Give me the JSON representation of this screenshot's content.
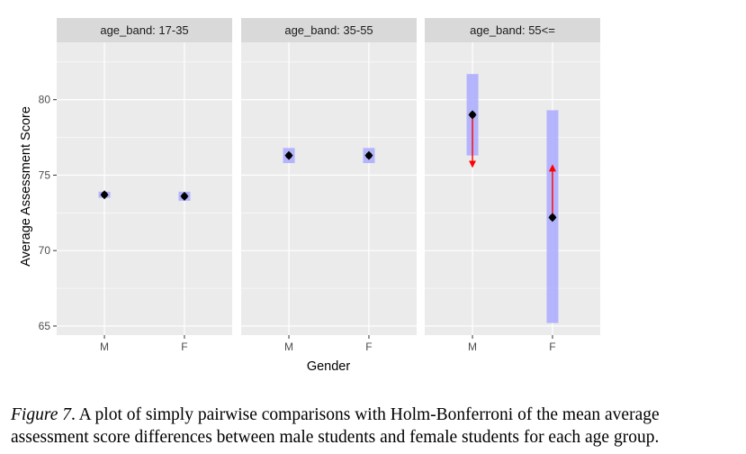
{
  "chart_data": {
    "type": "scatter",
    "facet_variable": "age_band",
    "panels": [
      {
        "strip_label": "age_band: 17-35",
        "points": [
          {
            "x": "M",
            "y": 73.7,
            "ci_low": 73.5,
            "ci_high": 73.9
          },
          {
            "x": "F",
            "y": 73.6,
            "ci_low": 73.3,
            "ci_high": 73.9
          }
        ],
        "arrows": []
      },
      {
        "strip_label": "age_band: 35-55",
        "points": [
          {
            "x": "M",
            "y": 76.3,
            "ci_low": 75.8,
            "ci_high": 76.8
          },
          {
            "x": "F",
            "y": 76.3,
            "ci_low": 75.8,
            "ci_high": 76.8
          }
        ],
        "arrows": []
      },
      {
        "strip_label": "age_band: 55<=",
        "points": [
          {
            "x": "M",
            "y": 79.0,
            "ci_low": 76.3,
            "ci_high": 81.7
          },
          {
            "x": "F",
            "y": 72.2,
            "ci_low": 65.2,
            "ci_high": 79.3
          }
        ],
        "arrows": [
          {
            "x": "M",
            "from": 79.0,
            "to": 75.6
          },
          {
            "x": "F",
            "from": 72.2,
            "to": 75.6
          }
        ]
      }
    ],
    "categories": [
      "M",
      "F"
    ],
    "xlabel": "Gender",
    "ylabel": "Average Assessment Score",
    "yticks": [
      65,
      70,
      75,
      80
    ],
    "ylim": [
      64.4,
      83.8
    ],
    "grid": true,
    "colors": {
      "panel_bg": "#ebebeb",
      "strip_bg": "#d9d9d9",
      "grid": "#ffffff",
      "ci_band": "#aaaaff",
      "point": "#000000",
      "arrow": "#ff0000",
      "text": "#1a1a1a",
      "tick_text": "#4d4d4d"
    }
  },
  "caption": {
    "figure_label": "Figure 7",
    "text": ". A plot of simply pairwise comparisons with Holm-Bonferroni of the mean average assessment score differences between male students and female students for each age group."
  }
}
